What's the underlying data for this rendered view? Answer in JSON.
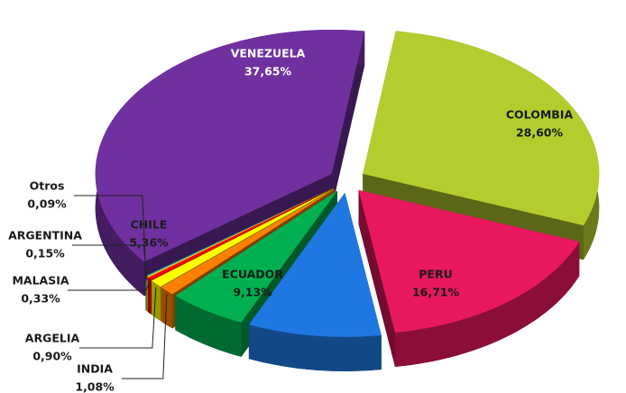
{
  "chart_data": {
    "type": "pie",
    "categories": [
      "COLOMBIA",
      "PERU",
      "ECUADOR",
      "CHILE",
      "INDIA",
      "ARGELIA",
      "MALASIA",
      "ARGENTINA",
      "Otros",
      "VENEZUELA"
    ],
    "values": [
      28.6,
      16.71,
      9.13,
      5.36,
      1.08,
      0.9,
      0.33,
      0.15,
      0.09,
      37.65
    ],
    "value_labels": [
      "28,60%",
      "16,71%",
      "9,13%",
      "5,36%",
      "1,08%",
      "0,90%",
      "0,33%",
      "0,15%",
      "0,09%",
      "37,65%"
    ],
    "colors": [
      "#b5cc2e",
      "#e8185f",
      "#1f78e2",
      "#00b050",
      "#ff8000",
      "#ffff00",
      "#ff0000",
      "#ffc000",
      "#00b0f0",
      "#7030a0"
    ]
  }
}
